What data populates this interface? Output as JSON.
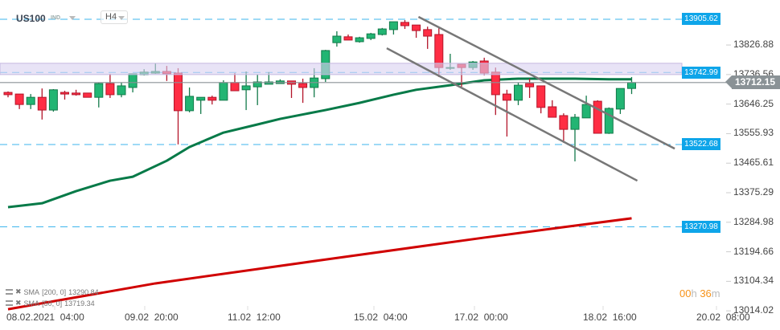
{
  "header": {
    "symbol": "US100",
    "symbol_type": "IND",
    "timeframe": "H4"
  },
  "colors": {
    "bull": "#22b573",
    "bull_border": "#137a4a",
    "bear": "#ff2d44",
    "bear_border": "#b3152a",
    "sma50": "#067a48",
    "sma200": "#d00000",
    "level": "#0ea5e9",
    "channel": "#777777",
    "band": "#d8d0f0",
    "current": "#8a9296"
  },
  "price_axis": [
    "13826.88",
    "13736.56",
    "13646.25",
    "13555.93",
    "13465.61",
    "13375.29",
    "13284.98",
    "13194.66",
    "13104.34",
    "13014.02"
  ],
  "price_axis_values": [
    13826.88,
    13736.56,
    13646.25,
    13555.93,
    13465.61,
    13375.29,
    13284.98,
    13194.66,
    13104.34,
    13014.02
  ],
  "levels": [
    {
      "label": "13905.62",
      "value": 13905.62
    },
    {
      "label": "13742.99",
      "value": 13742.99
    },
    {
      "label": "13522.68",
      "value": 13522.68
    },
    {
      "label": "13270.98",
      "value": 13270.98
    }
  ],
  "zone": [
    13736.5,
    13771
  ],
  "current_price": {
    "label": "13712.15",
    "value": 13712.15
  },
  "time_axis": [
    "08.02.2021  04:00",
    "09.02  20:00",
    "11.02  12:00",
    "15.02  04:00",
    "17.02  00:00",
    "18.02  16:00",
    "20.02  08:00"
  ],
  "indicators": [
    {
      "name": "SMA",
      "params": "[200, 0]",
      "value": "13290.84"
    },
    {
      "name": "SMA",
      "params": "[50, 0]",
      "value": "13719.34"
    }
  ],
  "countdown": {
    "hours": "00",
    "h": "h",
    "minutes": "36",
    "m": "m"
  },
  "candles_ohlc": [
    [
      13682,
      13685,
      13667,
      13675
    ],
    [
      13677,
      13677,
      13631,
      13645
    ],
    [
      13645,
      13677,
      13631,
      13667
    ],
    [
      13667,
      13694,
      13599,
      13628
    ],
    [
      13628,
      13692,
      13623,
      13690
    ],
    [
      13682,
      13687,
      13660,
      13677
    ],
    [
      13680,
      13690,
      13672,
      13675
    ],
    [
      13680,
      13680,
      13667,
      13667
    ],
    [
      13667,
      13712,
      13636,
      13709
    ],
    [
      13709,
      13739,
      13665,
      13675
    ],
    [
      13675,
      13712,
      13667,
      13702
    ],
    [
      13697,
      13739,
      13682,
      13739
    ],
    [
      13736,
      13753,
      13734,
      13744
    ],
    [
      13741,
      13771,
      13739,
      13746
    ],
    [
      13746,
      13763,
      13717,
      13739
    ],
    [
      13741,
      13756,
      13523,
      13626
    ],
    [
      13626,
      13697,
      13621,
      13670
    ],
    [
      13658,
      13667,
      13616,
      13667
    ],
    [
      13667,
      13672,
      13645,
      13658
    ],
    [
      13658,
      13719,
      13658,
      13712
    ],
    [
      13712,
      13741,
      13687,
      13687
    ],
    [
      13690,
      13746,
      13628,
      13702
    ],
    [
      13699,
      13736,
      13643,
      13714
    ],
    [
      13707,
      13744,
      13707,
      13714
    ],
    [
      13709,
      13722,
      13709,
      13717
    ],
    [
      13717,
      13717,
      13665,
      13707
    ],
    [
      13709,
      13724,
      13650,
      13697
    ],
    [
      13697,
      13756,
      13667,
      13726
    ],
    [
      13724,
      13812,
      13714,
      13810
    ],
    [
      13834,
      13869,
      13822,
      13854
    ],
    [
      13852,
      13859,
      13842,
      13842
    ],
    [
      13837,
      13852,
      13834,
      13849
    ],
    [
      13847,
      13864,
      13842,
      13861
    ],
    [
      13859,
      13879,
      13856,
      13876
    ],
    [
      13874,
      13898,
      13859,
      13898
    ],
    [
      13896,
      13903,
      13876,
      13886
    ],
    [
      13888,
      13888,
      13849,
      13871
    ],
    [
      13874,
      13883,
      13815,
      13854
    ],
    [
      13859,
      13881,
      13729,
      13758
    ],
    [
      13756,
      13800,
      13751,
      13758
    ],
    [
      13768,
      13768,
      13699,
      13758
    ],
    [
      13758,
      13778,
      13751,
      13775
    ],
    [
      13778,
      13788,
      13734,
      13741
    ],
    [
      13744,
      13758,
      13613,
      13675
    ],
    [
      13677,
      13690,
      13547,
      13658
    ],
    [
      13658,
      13712,
      13643,
      13704
    ],
    [
      13709,
      13724,
      13665,
      13699
    ],
    [
      13702,
      13702,
      13618,
      13636
    ],
    [
      13638,
      13658,
      13606,
      13606
    ],
    [
      13611,
      13618,
      13528,
      13569
    ],
    [
      13569,
      13616,
      13471,
      13606
    ],
    [
      13604,
      13672,
      13604,
      13645
    ],
    [
      13655,
      13658,
      13557,
      13557
    ],
    [
      13557,
      13636,
      13555,
      13633
    ],
    [
      13631,
      13694,
      13616,
      13694
    ],
    [
      13694,
      13729,
      13677,
      13712
    ]
  ],
  "sma50_by_candle": [
    [
      0,
      13331
    ],
    [
      3,
      13343
    ],
    [
      6,
      13380
    ],
    [
      9,
      13412
    ],
    [
      11,
      13424
    ],
    [
      14,
      13473
    ],
    [
      16,
      13515
    ],
    [
      19,
      13559
    ],
    [
      22,
      13584
    ],
    [
      24,
      13601
    ],
    [
      28,
      13628
    ],
    [
      31,
      13650
    ],
    [
      34,
      13675
    ],
    [
      36,
      13690
    ],
    [
      39,
      13704
    ],
    [
      42,
      13719
    ],
    [
      45,
      13724
    ],
    [
      48,
      13724
    ],
    [
      50,
      13724
    ],
    [
      53,
      13722
    ],
    [
      55,
      13722
    ]
  ],
  "sma200_by_candle": [
    [
      0,
      13019
    ],
    [
      13,
      13098
    ],
    [
      28,
      13171
    ],
    [
      42,
      13238
    ],
    [
      49,
      13270
    ],
    [
      55,
      13297
    ]
  ],
  "channel": {
    "upper": [
      [
        36.2,
        13913
      ],
      [
        58.8,
        13510
      ]
    ],
    "lower": [
      [
        33.4,
        13817
      ],
      [
        55.5,
        13412
      ]
    ]
  }
}
